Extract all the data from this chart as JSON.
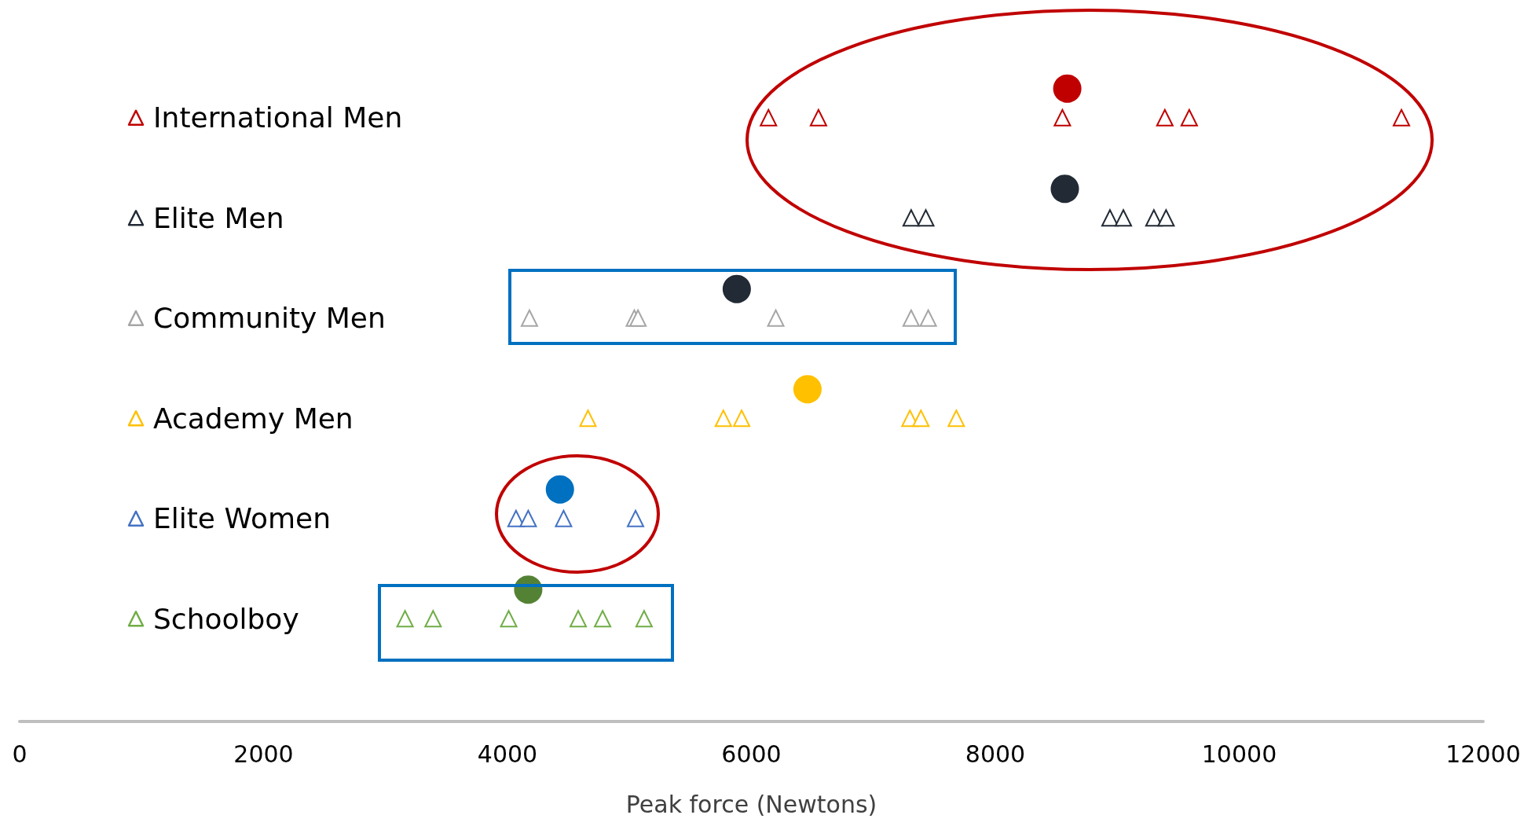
{
  "chart_data": {
    "type": "scatter",
    "orientation": "horizontal",
    "xlabel": "Peak force (Newtons)",
    "xlim": [
      0,
      12000
    ],
    "xticks": [
      0,
      2000,
      4000,
      6000,
      8000,
      10000,
      12000
    ],
    "grid": false,
    "categories": [
      "International Men",
      "Elite Men",
      "Community Men",
      "Academy Men",
      "Elite Women",
      "Schoolboy"
    ],
    "series": [
      {
        "color": "#c00000",
        "marker": "triangle",
        "x": [
          "International Men",
          "International Men",
          "International Men",
          "International Men",
          "International Men",
          "International Men"
        ],
        "values": [
          6140,
          6550,
          8550,
          9390,
          9590,
          11330
        ]
      },
      {
        "color": "#222a35",
        "marker": "triangle",
        "x": [
          "Elite Men",
          "Elite Men",
          "Elite Men",
          "Elite Men",
          "Elite Men",
          "Elite Men"
        ],
        "values": [
          7310,
          7430,
          8940,
          9050,
          9300,
          9400
        ]
      },
      {
        "color": "#a6a6a6",
        "marker": "triangle",
        "x": [
          "Community Men",
          "Community Men",
          "Community Men",
          "Community Men",
          "Community Men",
          "Community Men"
        ],
        "values": [
          4180,
          5040,
          5070,
          6200,
          7310,
          7450
        ]
      },
      {
        "color": "#ffc000",
        "marker": "triangle",
        "x": [
          "Academy Men",
          "Academy Men",
          "Academy Men",
          "Academy Men",
          "Academy Men",
          "Academy Men"
        ],
        "values": [
          4660,
          5770,
          5920,
          7300,
          7390,
          7680
        ]
      },
      {
        "color": "#4472c4",
        "marker": "triangle",
        "x": [
          "Elite Women",
          "Elite Women",
          "Elite Women",
          "Elite Women"
        ],
        "values": [
          4070,
          4170,
          4460,
          5050
        ]
      },
      {
        "color": "#70ad47",
        "marker": "triangle",
        "x": [
          "Schoolboy",
          "Schoolboy",
          "Schoolboy",
          "Schoolboy",
          "Schoolboy",
          "Schoolboy"
        ],
        "values": [
          3160,
          3390,
          4010,
          4580,
          4780,
          5120
        ]
      },
      {
        "marker": "circle",
        "x": [
          "International Men",
          "Elite Men",
          "Community Men",
          "Academy Men",
          "Elite Women",
          "Schoolboy"
        ],
        "values": [
          8590,
          8570,
          5880,
          6460,
          4430,
          4170
        ],
        "colors": [
          "#c00000",
          "#222a35",
          "#222a35",
          "#ffc000",
          "#0070c0",
          "#548235"
        ]
      }
    ]
  }
}
